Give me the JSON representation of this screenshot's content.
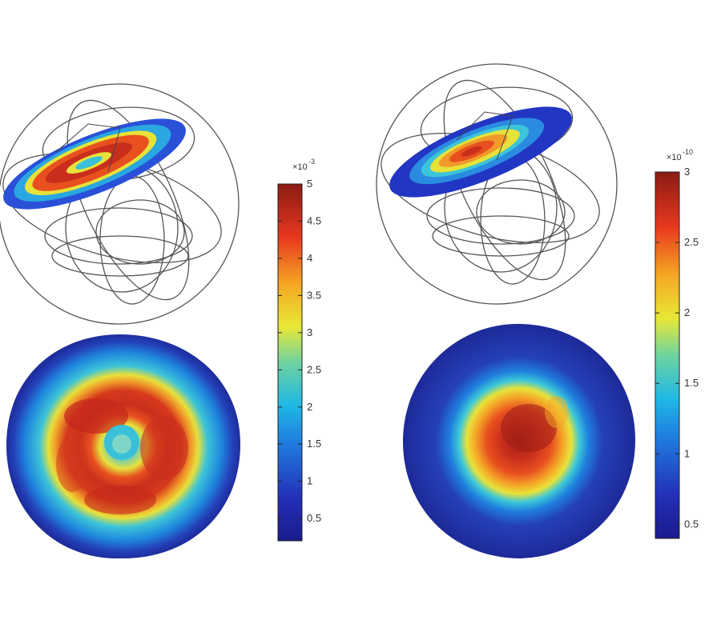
{
  "chart_data": [
    {
      "type": "heatmap",
      "panel": "left",
      "pattern": "ring",
      "colormap": "jet",
      "colorbar": {
        "min": 0.2,
        "max": 5,
        "ticks": [
          "0.5",
          "1",
          "1.5",
          "2",
          "2.5",
          "3",
          "3.5",
          "4",
          "4.5",
          "5"
        ],
        "tick_values": [
          0.5,
          1,
          1.5,
          2,
          2.5,
          3,
          3.5,
          4,
          4.5,
          5
        ],
        "multiplier": "×10",
        "exponent": "-3"
      }
    },
    {
      "type": "heatmap",
      "panel": "right",
      "pattern": "central-peak",
      "colormap": "jet",
      "colorbar": {
        "min": 0.4,
        "max": 3,
        "ticks": [
          "0.5",
          "1",
          "1.5",
          "2",
          "2.5",
          "3"
        ],
        "tick_values": [
          0.5,
          1,
          1.5,
          2,
          2.5,
          3
        ],
        "multiplier": "×10",
        "exponent": "-10"
      }
    }
  ]
}
